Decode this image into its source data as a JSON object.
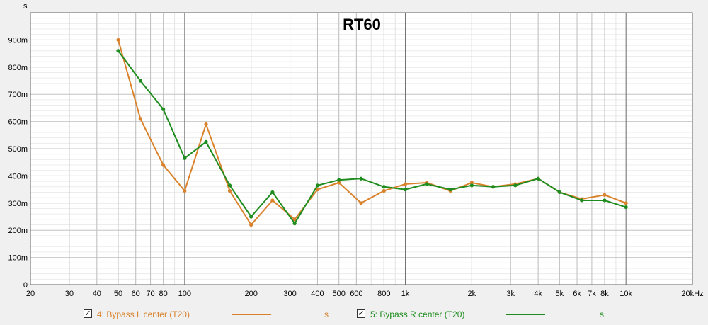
{
  "chart_data": {
    "type": "line",
    "title": "RT60",
    "ylabel": "s",
    "xlabel": "",
    "x_scale": "log",
    "xlim": [
      20,
      20000
    ],
    "ylim": [
      0,
      1.0
    ],
    "grid": true,
    "legend_position": "bottom",
    "x_ticks": [
      {
        "value": 20,
        "label": "20"
      },
      {
        "value": 30,
        "label": "30"
      },
      {
        "value": 40,
        "label": "40"
      },
      {
        "value": 50,
        "label": "50"
      },
      {
        "value": 60,
        "label": "60"
      },
      {
        "value": 70,
        "label": "70"
      },
      {
        "value": 80,
        "label": "80"
      },
      {
        "value": 100,
        "label": "100"
      },
      {
        "value": 200,
        "label": "200"
      },
      {
        "value": 300,
        "label": "300"
      },
      {
        "value": 400,
        "label": "400"
      },
      {
        "value": 500,
        "label": "500"
      },
      {
        "value": 600,
        "label": "600"
      },
      {
        "value": 800,
        "label": "800"
      },
      {
        "value": 1000,
        "label": "1k"
      },
      {
        "value": 2000,
        "label": "2k"
      },
      {
        "value": 3000,
        "label": "3k"
      },
      {
        "value": 4000,
        "label": "4k"
      },
      {
        "value": 5000,
        "label": "5k"
      },
      {
        "value": 6000,
        "label": "6k"
      },
      {
        "value": 7000,
        "label": "7k"
      },
      {
        "value": 8000,
        "label": "8k"
      },
      {
        "value": 10000,
        "label": "10k"
      },
      {
        "value": 20000,
        "label": "20kHz"
      }
    ],
    "y_ticks": [
      {
        "value": 0,
        "label": "0"
      },
      {
        "value": 0.1,
        "label": "100m"
      },
      {
        "value": 0.2,
        "label": "200m"
      },
      {
        "value": 0.3,
        "label": "300m"
      },
      {
        "value": 0.4,
        "label": "400m"
      },
      {
        "value": 0.5,
        "label": "500m"
      },
      {
        "value": 0.6,
        "label": "600m"
      },
      {
        "value": 0.7,
        "label": "700m"
      },
      {
        "value": 0.8,
        "label": "800m"
      },
      {
        "value": 0.9,
        "label": "900m"
      }
    ],
    "x": [
      50,
      63,
      80,
      100,
      125,
      160,
      200,
      250,
      315,
      400,
      500,
      630,
      800,
      1000,
      1250,
      1600,
      2000,
      2500,
      3150,
      4000,
      5000,
      6300,
      8000,
      10000
    ],
    "series": [
      {
        "name": "4: Bypass L center (T20)",
        "unit": "s",
        "color": "#d9822b",
        "checked": true,
        "values": [
          0.9,
          0.61,
          0.44,
          0.345,
          0.59,
          0.345,
          0.22,
          0.31,
          0.24,
          0.35,
          0.375,
          0.3,
          0.345,
          0.37,
          0.375,
          0.345,
          0.375,
          0.36,
          0.37,
          0.39,
          0.34,
          0.315,
          0.33,
          0.3
        ]
      },
      {
        "name": "5: Bypass R center (T20)",
        "unit": "s",
        "color": "#1e8c1e",
        "checked": true,
        "values": [
          0.86,
          0.75,
          0.645,
          0.465,
          0.525,
          0.365,
          0.25,
          0.34,
          0.225,
          0.365,
          0.385,
          0.39,
          0.36,
          0.35,
          0.37,
          0.35,
          0.365,
          0.36,
          0.365,
          0.39,
          0.34,
          0.31,
          0.31,
          0.285
        ]
      }
    ]
  },
  "legend": {
    "check_glyph": "✓"
  }
}
